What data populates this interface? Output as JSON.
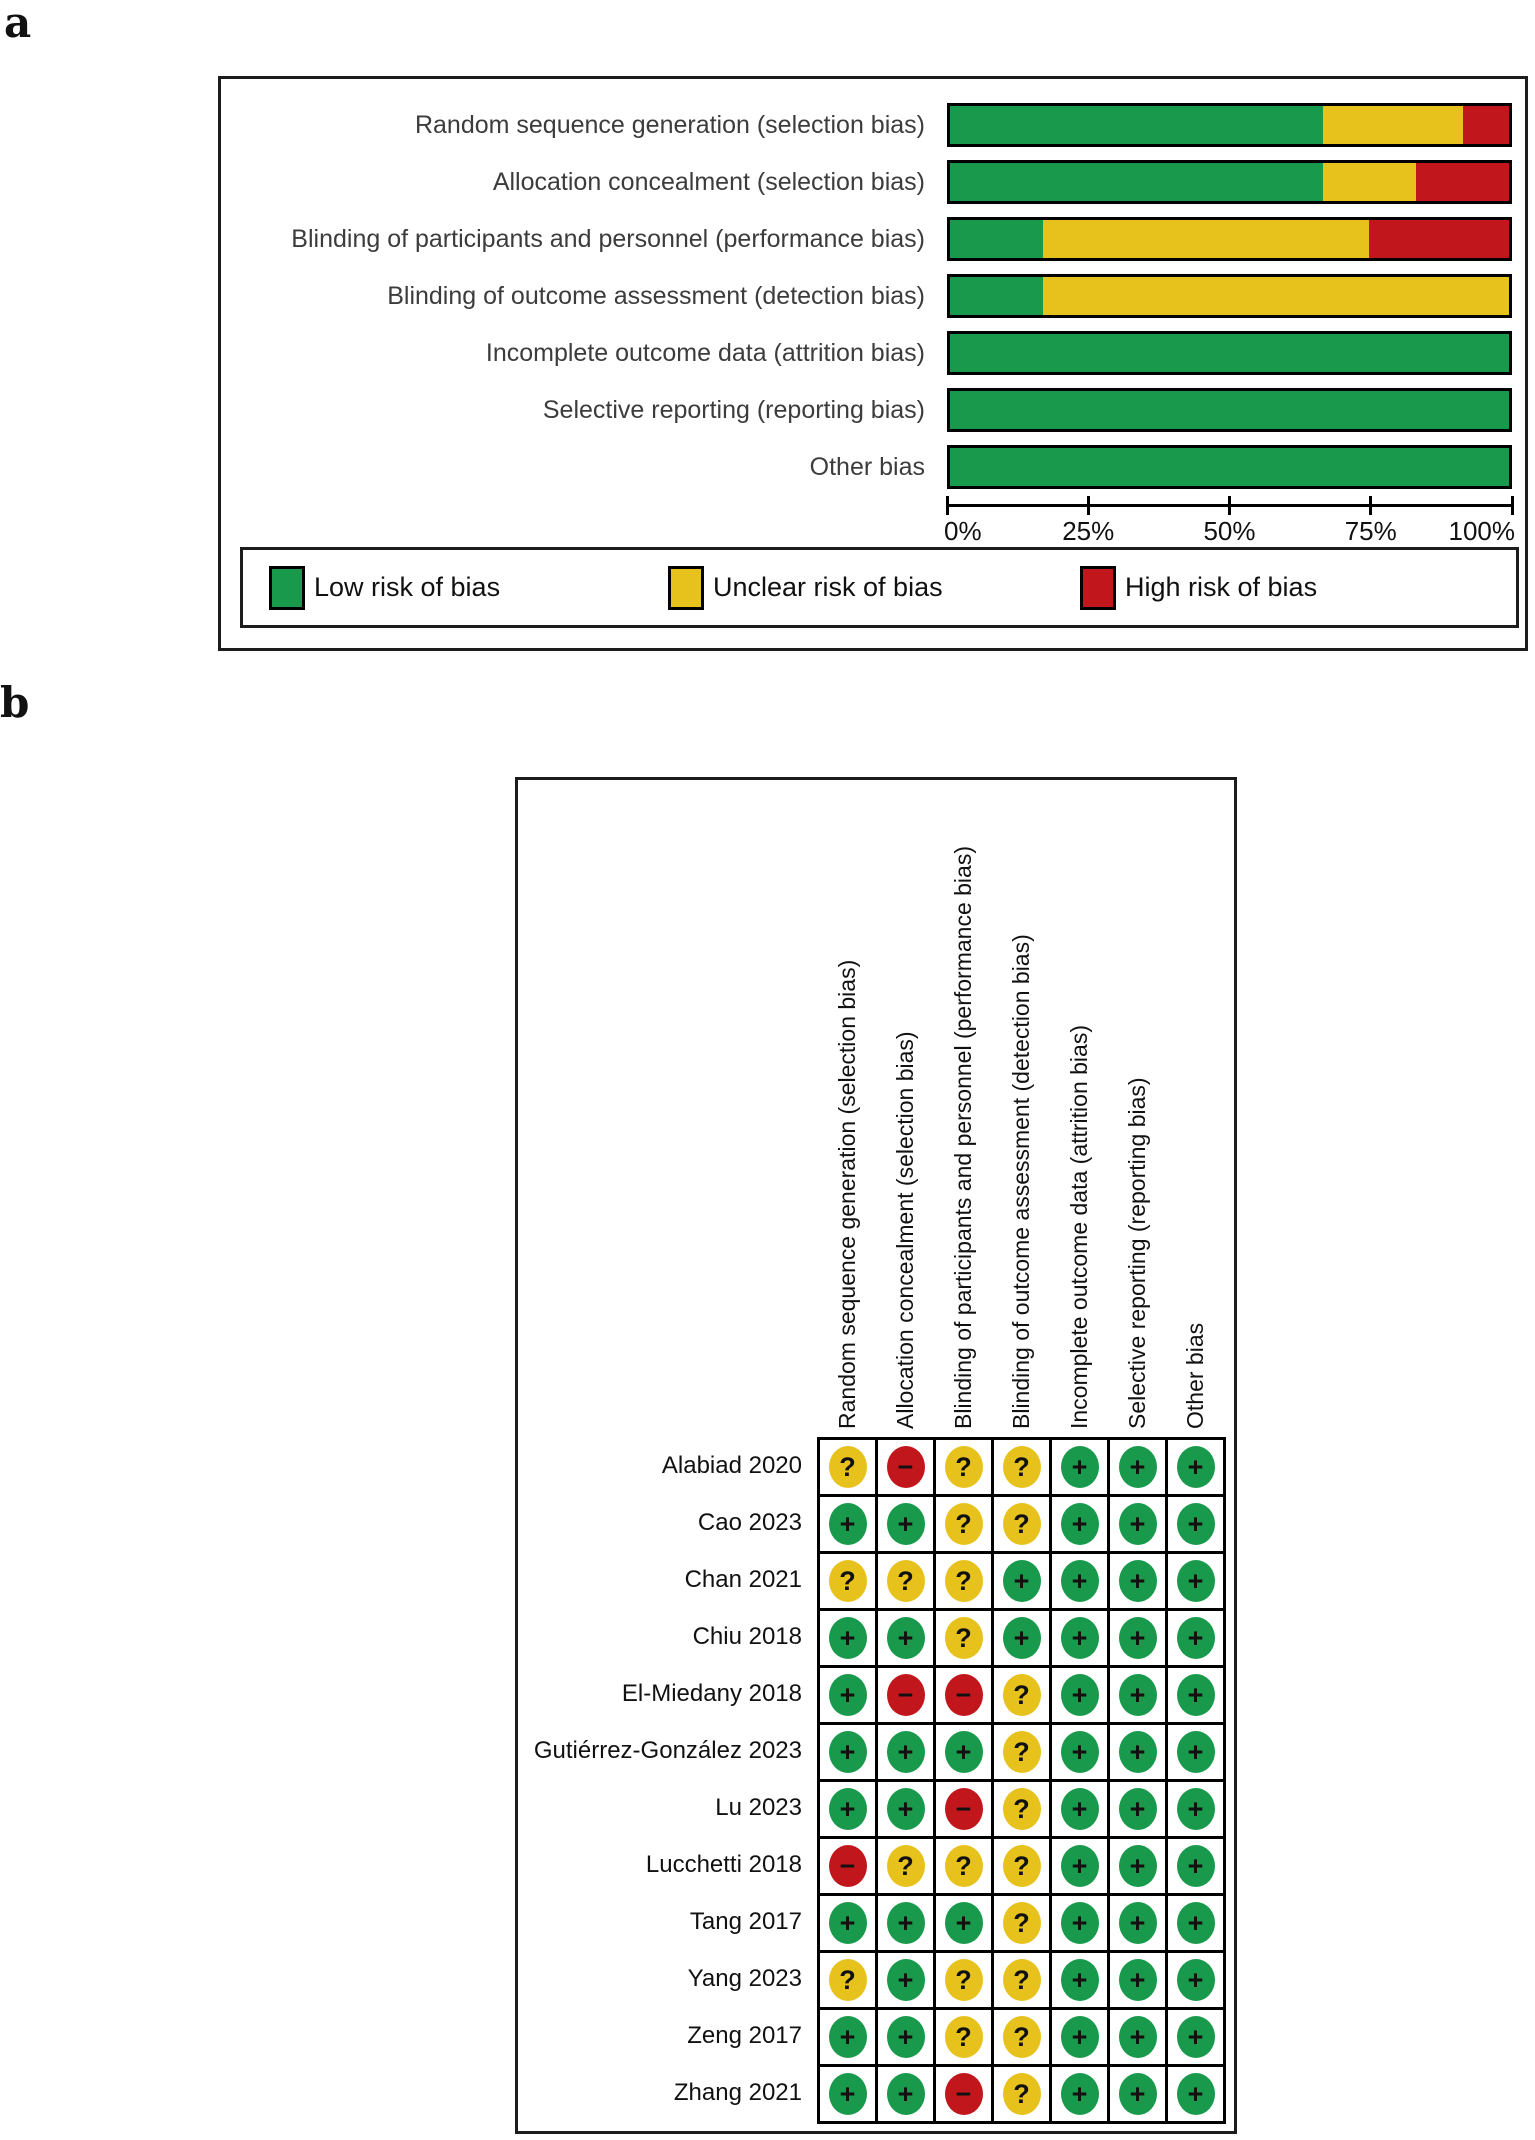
{
  "panels": {
    "a": {
      "label": "a",
      "axis_tick_labels": [
        "0%",
        "25%",
        "50%",
        "75%",
        "100%"
      ],
      "legend": [
        {
          "key": "low",
          "label": "Low risk of bias"
        },
        {
          "key": "unclear",
          "label": "Unclear risk of bias"
        },
        {
          "key": "high",
          "label": "High risk of bias"
        }
      ]
    },
    "b": {
      "label": "b"
    }
  },
  "judgement_styles": {
    "low": {
      "color": "#18994b",
      "symbol": "+"
    },
    "unclear": {
      "color": "#e8c21c",
      "symbol": "?"
    },
    "high": {
      "color": "#c2161d",
      "symbol": "−"
    }
  },
  "chart_data": [
    {
      "type": "bar",
      "subtype": "horizontal-stacked",
      "title": "Risk of bias graph",
      "categories": [
        "Random sequence generation (selection bias)",
        "Allocation concealment (selection bias)",
        "Blinding of participants and personnel (performance bias)",
        "Blinding of outcome assessment (detection bias)",
        "Incomplete outcome data (attrition bias)",
        "Selective reporting (reporting bias)",
        "Other bias"
      ],
      "series": [
        {
          "name": "Low risk of bias",
          "key": "low",
          "values": [
            66.7,
            66.7,
            16.7,
            16.7,
            100,
            100,
            100
          ]
        },
        {
          "name": "Unclear risk of bias",
          "key": "unclear",
          "values": [
            25,
            16.7,
            58.3,
            83.3,
            0,
            0,
            0
          ]
        },
        {
          "name": "High risk of bias",
          "key": "high",
          "values": [
            8.3,
            16.7,
            25,
            0,
            0,
            0,
            0
          ]
        }
      ],
      "xlabel": "",
      "ylabel": "",
      "xlim": [
        0,
        100
      ],
      "xticks": [
        0,
        25,
        50,
        75,
        100
      ],
      "grid": false,
      "legend_position": "bottom"
    },
    {
      "type": "table",
      "title": "Risk of bias summary",
      "columns": [
        "Random sequence generation (selection bias)",
        "Allocation concealment (selection bias)",
        "Blinding of participants and personnel (performance bias)",
        "Blinding of outcome assessment (detection bias)",
        "Incomplete outcome data (attrition bias)",
        "Selective reporting (reporting bias)",
        "Other bias"
      ],
      "rows": [
        {
          "study": "Alabiad 2020",
          "judgements": [
            "unclear",
            "high",
            "unclear",
            "unclear",
            "low",
            "low",
            "low"
          ]
        },
        {
          "study": "Cao 2023",
          "judgements": [
            "low",
            "low",
            "unclear",
            "unclear",
            "low",
            "low",
            "low"
          ]
        },
        {
          "study": "Chan 2021",
          "judgements": [
            "unclear",
            "unclear",
            "unclear",
            "low",
            "low",
            "low",
            "low"
          ]
        },
        {
          "study": "Chiu 2018",
          "judgements": [
            "low",
            "low",
            "unclear",
            "low",
            "low",
            "low",
            "low"
          ]
        },
        {
          "study": "El-Miedany 2018",
          "judgements": [
            "low",
            "high",
            "high",
            "unclear",
            "low",
            "low",
            "low"
          ]
        },
        {
          "study": "Gutiérrez-González 2023",
          "judgements": [
            "low",
            "low",
            "low",
            "unclear",
            "low",
            "low",
            "low"
          ]
        },
        {
          "study": "Lu 2023",
          "judgements": [
            "low",
            "low",
            "high",
            "unclear",
            "low",
            "low",
            "low"
          ]
        },
        {
          "study": "Lucchetti 2018",
          "judgements": [
            "high",
            "unclear",
            "unclear",
            "unclear",
            "low",
            "low",
            "low"
          ]
        },
        {
          "study": "Tang 2017",
          "judgements": [
            "low",
            "low",
            "low",
            "unclear",
            "low",
            "low",
            "low"
          ]
        },
        {
          "study": "Yang 2023",
          "judgements": [
            "unclear",
            "low",
            "unclear",
            "unclear",
            "low",
            "low",
            "low"
          ]
        },
        {
          "study": "Zeng 2017",
          "judgements": [
            "low",
            "low",
            "unclear",
            "unclear",
            "low",
            "low",
            "low"
          ]
        },
        {
          "study": "Zhang 2021",
          "judgements": [
            "low",
            "low",
            "high",
            "unclear",
            "low",
            "low",
            "low"
          ]
        }
      ]
    }
  ]
}
